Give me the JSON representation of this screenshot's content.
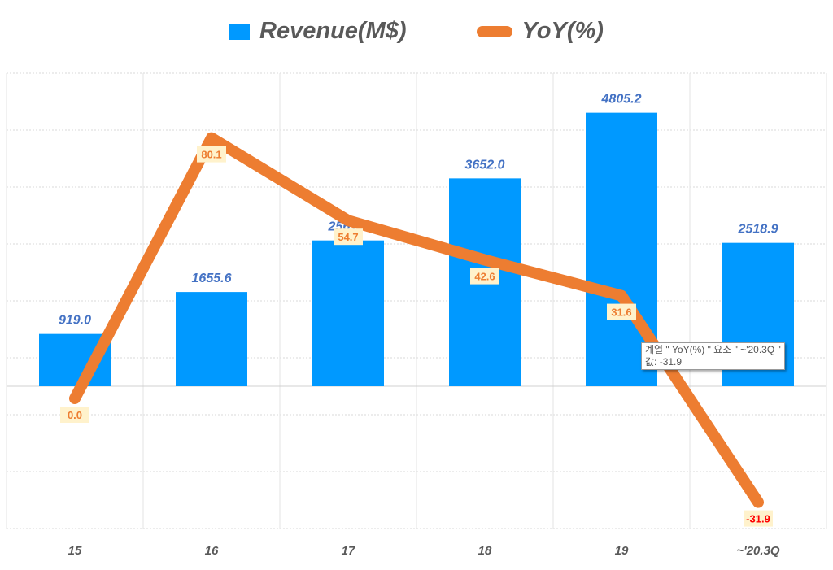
{
  "chart_data": {
    "type": "bar+line",
    "categories": [
      "15",
      "16",
      "17",
      "18",
      "19",
      "~'20.3Q"
    ],
    "series": [
      {
        "name": "Revenue(M$)",
        "type": "bar",
        "axis": "primary",
        "color": "#0099ff",
        "values": [
          919.0,
          1655.6,
          2561.7,
          3652.0,
          4805.2,
          2518.9
        ],
        "labels": [
          "919.0",
          "1655.6",
          "2561.7",
          "3652.0",
          "4805.2",
          "2518.9"
        ]
      },
      {
        "name": "YoY(%)",
        "type": "line",
        "axis": "secondary",
        "color": "#ed7d31",
        "values": [
          0.0,
          80.1,
          54.7,
          42.6,
          31.6,
          -31.9
        ],
        "labels": [
          "0.0",
          "80.1",
          "54.7",
          "42.6",
          "31.6",
          "-31.9"
        ]
      }
    ],
    "ylim": [
      -2500,
      5500
    ],
    "y2lim": [
      -40,
      100
    ],
    "grid": true,
    "legend": "top"
  },
  "tooltip": {
    "line1": "계열 \" YoY(%) \" 요소 \" ~'20.3Q \"",
    "line2": "값: -31.9"
  }
}
